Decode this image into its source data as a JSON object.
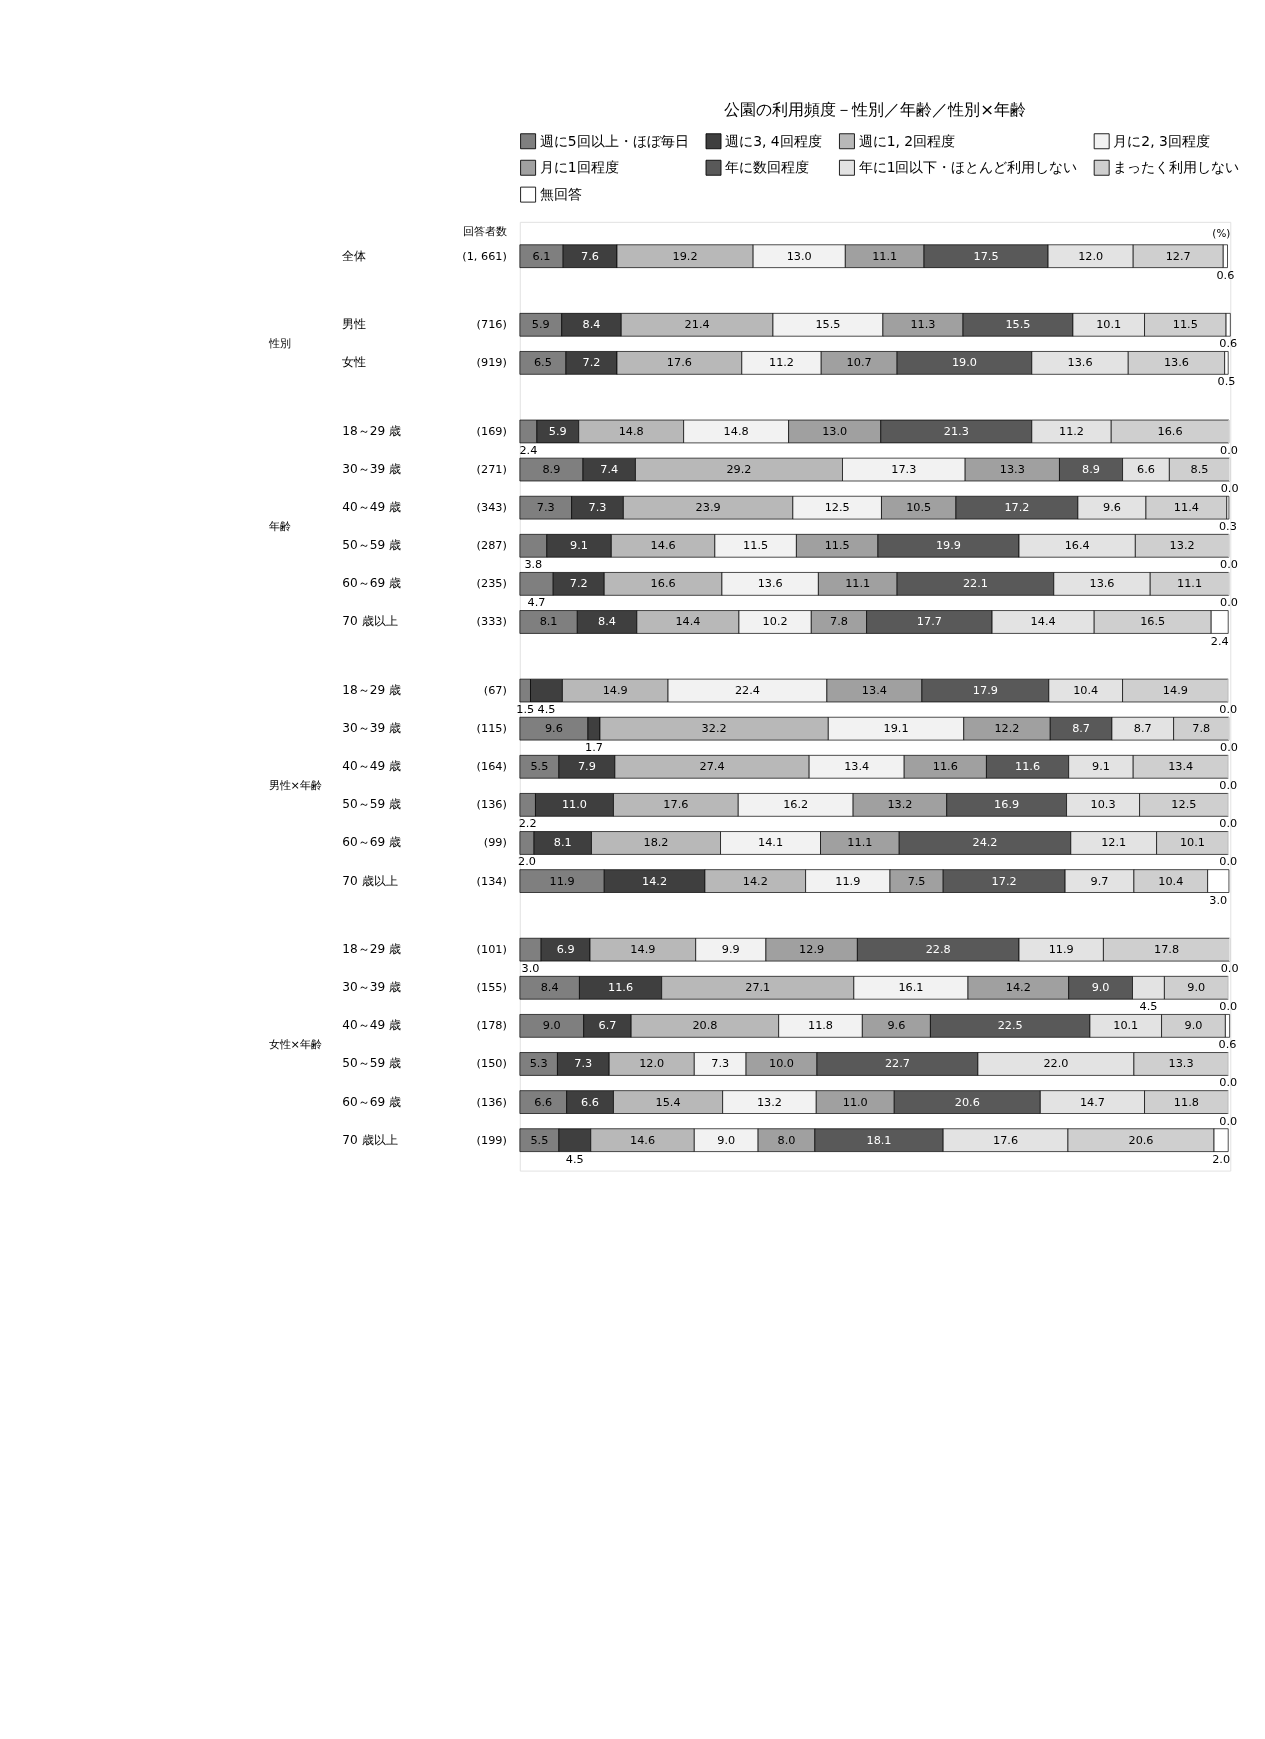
{
  "chart_data": {
    "type": "bar",
    "orientation": "horizontal",
    "stacked": true,
    "legend": "top",
    "title": "公園の利用頻度－性別／年齢／性別×年齢",
    "categories": [
      "全体",
      "男性",
      "女性",
      "18～29 歳",
      "30～39 歳",
      "40～49 歳",
      "50～59 歳",
      "60～69 歳",
      "70 歳以上",
      "18～29 歳",
      "30～39 歳",
      "40～49 歳",
      "50～59 歳",
      "60～69 歳",
      "70 歳以上",
      "18～29 歳",
      "30～39 歳",
      "40～49 歳",
      "50～59 歳",
      "60～69 歳",
      "70 歳以上"
    ],
    "annotations": [
      "回答者数",
      "(%)",
      "性別",
      "年齢",
      "男性×年齢",
      "女性×年齢",
      "(1, 661)",
      "(716)",
      "(919)",
      "(169)",
      "(271)",
      "(343)",
      "(287)",
      "(235)",
      "(333)",
      "(67)",
      "(115)",
      "(164)",
      "(136)",
      "(99)",
      "(134)",
      "(101)",
      "(155)",
      "(178)",
      "(150)",
      "(136)",
      "(199)"
    ],
    "series": [
      {
        "name": "週に5回以上・ほぼ毎日",
        "color": "#7f7f7f",
        "values": [
          6.1,
          5.9,
          6.5,
          2.4,
          8.9,
          7.3,
          3.8,
          4.7,
          8.1,
          1.5,
          9.6,
          5.5,
          2.2,
          2.0,
          11.9,
          3.0,
          8.4,
          9.0,
          5.3,
          6.6,
          5.5
        ],
        "value_labels": [
          "6.1",
          "5.9",
          "6.5",
          "2.4",
          "8.9",
          "7.3",
          "3.8",
          "4.7",
          "8.1",
          "1.5",
          "9.6",
          "5.5",
          "2.2",
          "2.0",
          "11.9",
          "3.0",
          "8.4",
          "9.0",
          "5.3",
          "6.6",
          "5.5"
        ]
      },
      {
        "name": "週に3, 4回程度",
        "color": "#3f3f3f",
        "values": [
          7.6,
          8.4,
          7.2,
          5.9,
          7.4,
          7.3,
          9.1,
          7.2,
          8.4,
          4.5,
          1.7,
          7.9,
          11.0,
          8.1,
          14.2,
          6.9,
          11.6,
          6.7,
          7.3,
          6.6,
          4.5
        ],
        "value_labels": [
          "7.6",
          "8.4",
          "7.2",
          "5.9",
          "7.4",
          "7.3",
          "9.1",
          "7.2",
          "8.4",
          "4.5",
          "1.7",
          "7.9",
          "11.0",
          "8.1",
          "14.2",
          "6.9",
          "11.6",
          "6.7",
          "7.3",
          "6.6",
          "4.5"
        ]
      },
      {
        "name": "週に1, 2回程度",
        "color": "#b8b8b8",
        "values": [
          19.2,
          21.4,
          17.6,
          14.8,
          29.2,
          23.9,
          14.6,
          16.6,
          14.4,
          14.9,
          32.2,
          27.4,
          17.6,
          18.2,
          14.2,
          14.9,
          27.1,
          20.8,
          12.0,
          15.4,
          14.6
        ],
        "value_labels": [
          "19.2",
          "21.4",
          "17.6",
          "14.8",
          "29.2",
          "23.9",
          "14.6",
          "16.6",
          "14.4",
          "14.9",
          "32.2",
          "27.4",
          "17.6",
          "18.2",
          "14.2",
          "14.9",
          "27.1",
          "20.8",
          "12.0",
          "15.4",
          "14.6"
        ]
      },
      {
        "name": "月に2, 3回程度",
        "color": "#f2f2f2",
        "values": [
          13.0,
          15.5,
          11.2,
          14.8,
          17.3,
          12.5,
          11.5,
          13.6,
          10.2,
          22.4,
          19.1,
          13.4,
          16.2,
          14.1,
          11.9,
          9.9,
          16.1,
          11.8,
          7.3,
          13.2,
          9.0
        ],
        "value_labels": [
          "13.0",
          "15.5",
          "11.2",
          "14.8",
          "17.3",
          "12.5",
          "11.5",
          "13.6",
          "10.2",
          "22.4",
          "19.1",
          "13.4",
          "16.2",
          "14.1",
          "11.9",
          "9.9",
          "16.1",
          "11.8",
          "7.3",
          "13.2",
          "9.0"
        ]
      },
      {
        "name": "月に1回程度",
        "color": "#a0a0a0",
        "values": [
          11.1,
          11.3,
          10.7,
          13.0,
          13.3,
          10.5,
          11.5,
          11.1,
          7.8,
          13.4,
          12.2,
          11.6,
          13.2,
          11.1,
          7.5,
          12.9,
          14.2,
          9.6,
          10.0,
          11.0,
          8.0
        ],
        "value_labels": [
          "11.1",
          "11.3",
          "10.7",
          "13.0",
          "13.3",
          "10.5",
          "11.5",
          "11.1",
          "7.8",
          "13.4",
          "12.2",
          "11.6",
          "13.2",
          "11.1",
          "7.5",
          "12.9",
          "14.2",
          "9.6",
          "10.0",
          "11.0",
          "8.0"
        ]
      },
      {
        "name": "年に数回程度",
        "color": "#595959",
        "values": [
          17.5,
          15.5,
          19.0,
          21.3,
          8.9,
          17.2,
          19.9,
          22.1,
          17.7,
          17.9,
          8.7,
          11.6,
          16.9,
          24.2,
          17.2,
          22.8,
          9.0,
          22.5,
          22.7,
          20.6,
          18.1
        ],
        "value_labels": [
          "17.5",
          "15.5",
          "19.0",
          "21.3",
          "8.9",
          "17.2",
          "19.9",
          "22.1",
          "17.7",
          "17.9",
          "8.7",
          "11.6",
          "16.9",
          "24.2",
          "17.2",
          "22.8",
          "9.0",
          "22.5",
          "22.7",
          "20.6",
          "18.1"
        ]
      },
      {
        "name": "年に1回以下・ほとんど利用しない",
        "color": "#e3e3e3",
        "values": [
          12.0,
          10.1,
          13.6,
          11.2,
          6.6,
          9.6,
          16.4,
          13.6,
          14.4,
          10.4,
          8.7,
          9.1,
          10.3,
          12.1,
          9.7,
          11.9,
          4.5,
          10.1,
          22.0,
          14.7,
          17.6
        ],
        "value_labels": [
          "12.0",
          "10.1",
          "13.6",
          "11.2",
          "6.6",
          "9.6",
          "16.4",
          "13.6",
          "14.4",
          "10.4",
          "8.7",
          "9.1",
          "10.3",
          "12.1",
          "9.7",
          "11.9",
          "4.5",
          "10.1",
          "22.0",
          "14.7",
          "17.6"
        ]
      },
      {
        "name": "まったく利用しない",
        "color": "#cfcfcf",
        "values": [
          12.7,
          11.5,
          13.6,
          16.6,
          8.5,
          11.4,
          13.2,
          11.1,
          16.5,
          14.9,
          7.8,
          13.4,
          12.5,
          10.1,
          10.4,
          17.8,
          9.0,
          9.0,
          13.3,
          11.8,
          20.6
        ],
        "value_labels": [
          "12.7",
          "11.5",
          "13.6",
          "16.6",
          "8.5",
          "11.4",
          "13.2",
          "11.1",
          "16.5",
          "14.9",
          "7.8",
          "13.4",
          "12.5",
          "10.1",
          "10.4",
          "17.8",
          "9.0",
          "9.0",
          "13.3",
          "11.8",
          "20.6"
        ]
      },
      {
        "name": "無回答",
        "color": "#ffffff",
        "values": [
          0.6,
          0.6,
          0.5,
          0.0,
          0.0,
          0.3,
          0.0,
          0.0,
          2.4,
          0.0,
          0.0,
          0.0,
          0.0,
          0.0,
          3.0,
          0.0,
          0.0,
          0.6,
          0.0,
          0.0,
          2.0
        ],
        "value_labels": [
          "0.6",
          "0.6",
          "0.5",
          "0.0",
          "0.0",
          "0.3",
          "0.0",
          "0.0",
          "2.4",
          "0.0",
          "0.0",
          "0.0",
          "0.0",
          "0.0",
          "3.0",
          "0.0",
          "0.0",
          "0.6",
          "0.0",
          "0.0",
          "2.0"
        ]
      }
    ]
  }
}
